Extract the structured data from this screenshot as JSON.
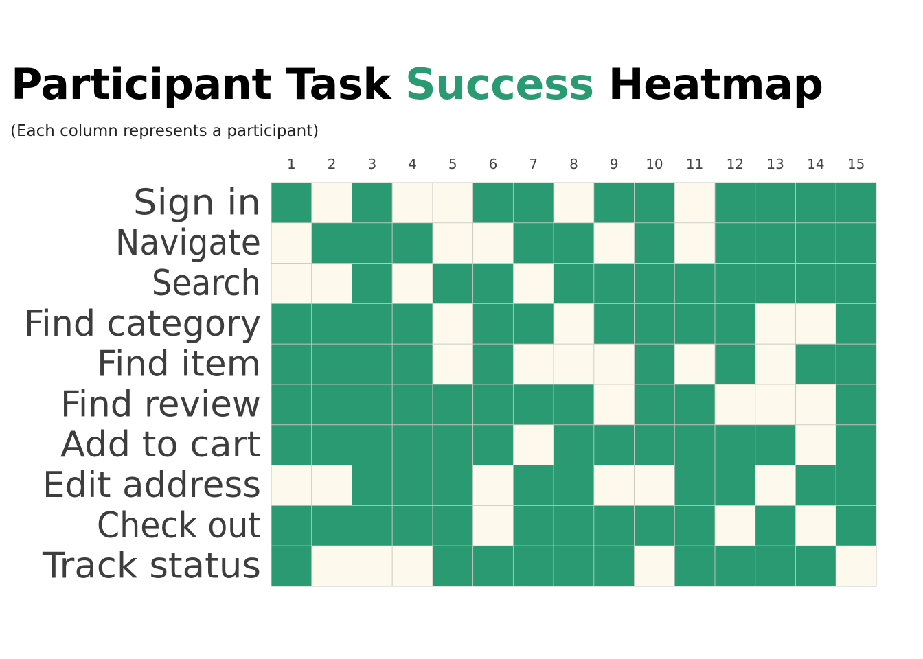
{
  "chart_data": {
    "type": "heatmap",
    "title": {
      "part1": "Participant Task ",
      "highlight": "Success",
      "part2": " Heatmap"
    },
    "subtitle": "(Each column represents a participant)",
    "columns": [
      "1",
      "2",
      "3",
      "4",
      "5",
      "6",
      "7",
      "8",
      "9",
      "10",
      "11",
      "12",
      "13",
      "14",
      "15"
    ],
    "rows": [
      "Sign in",
      "Navigate",
      "Search",
      "Find category",
      "Find item",
      "Find review",
      "Add to cart",
      "Edit address",
      "Check out",
      "Track status"
    ],
    "values": [
      [
        1,
        0,
        1,
        0,
        0,
        1,
        1,
        0,
        1,
        1,
        0,
        1,
        1,
        1,
        1
      ],
      [
        0,
        1,
        1,
        1,
        0,
        0,
        1,
        1,
        0,
        1,
        0,
        1,
        1,
        1,
        1
      ],
      [
        0,
        0,
        1,
        0,
        1,
        1,
        0,
        1,
        1,
        1,
        1,
        1,
        1,
        1,
        1
      ],
      [
        1,
        1,
        1,
        1,
        0,
        1,
        1,
        0,
        1,
        1,
        1,
        1,
        0,
        0,
        1
      ],
      [
        1,
        1,
        1,
        1,
        0,
        1,
        0,
        0,
        0,
        1,
        0,
        1,
        0,
        1,
        1
      ],
      [
        1,
        1,
        1,
        1,
        1,
        1,
        1,
        1,
        0,
        1,
        1,
        0,
        0,
        0,
        1
      ],
      [
        1,
        1,
        1,
        1,
        1,
        1,
        0,
        1,
        1,
        1,
        1,
        1,
        1,
        0,
        1
      ],
      [
        0,
        0,
        1,
        1,
        1,
        0,
        1,
        1,
        0,
        0,
        1,
        1,
        0,
        1,
        1
      ],
      [
        1,
        1,
        1,
        1,
        1,
        0,
        1,
        1,
        1,
        1,
        1,
        0,
        1,
        0,
        1
      ],
      [
        1,
        0,
        0,
        0,
        1,
        1,
        1,
        1,
        1,
        0,
        1,
        1,
        1,
        1,
        0
      ]
    ],
    "legend": "none",
    "colors": {
      "success": "#2a9a72",
      "failure": "#fdf9ec",
      "grid": "#c9c9c2",
      "title_accent": "#2a9a72"
    }
  }
}
